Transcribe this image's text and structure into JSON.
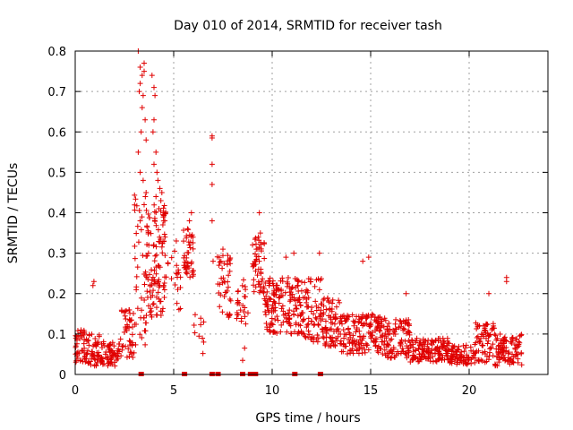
{
  "chart_data": {
    "type": "scatter",
    "title": "Day 010 of 2014, SRMTID for receiver tash",
    "xlabel": "GPS time / hours",
    "ylabel": "SRMTID / TECUs",
    "xlim": [
      0,
      24
    ],
    "ylim": [
      0,
      0.8
    ],
    "xticks": [
      0,
      5,
      10,
      15,
      20
    ],
    "yticks": [
      0,
      0.1,
      0.2,
      0.3,
      0.4,
      0.5,
      0.6,
      0.7,
      0.8
    ],
    "xtick_labels": [
      "0",
      "5",
      "10",
      "15",
      "20"
    ],
    "ytick_labels": [
      "0",
      "0.1",
      "0.2",
      "0.3",
      "0.4",
      "0.5",
      "0.6",
      "0.7",
      "0.8"
    ],
    "grid": true,
    "marker": "+",
    "color": "#e00000",
    "series": [
      {
        "name": "SRMTID",
        "segments": [
          {
            "x0": 0.0,
            "x1": 0.5,
            "base": 0.07,
            "spread": 0.04,
            "n": 40
          },
          {
            "x0": 0.5,
            "x1": 1.5,
            "base": 0.06,
            "spread": 0.04,
            "n": 70
          },
          {
            "x0": 1.5,
            "x1": 2.3,
            "base": 0.05,
            "spread": 0.03,
            "n": 50
          },
          {
            "x0": 2.3,
            "x1": 3.0,
            "base": 0.1,
            "spread": 0.06,
            "n": 45
          },
          {
            "x0": 3.0,
            "x1": 3.6,
            "base": 0.25,
            "spread": 0.2,
            "n": 40
          },
          {
            "x0": 3.6,
            "x1": 4.6,
            "base": 0.28,
            "spread": 0.14,
            "n": 110
          },
          {
            "x0": 4.6,
            "x1": 5.4,
            "base": 0.25,
            "spread": 0.1,
            "n": 20
          },
          {
            "x0": 5.5,
            "x1": 6.0,
            "base": 0.3,
            "spread": 0.06,
            "n": 40
          },
          {
            "x0": 6.0,
            "x1": 6.8,
            "base": 0.1,
            "spread": 0.05,
            "n": 10
          },
          {
            "x0": 7.2,
            "x1": 7.9,
            "base": 0.22,
            "spread": 0.08,
            "n": 40
          },
          {
            "x0": 8.2,
            "x1": 8.8,
            "base": 0.17,
            "spread": 0.07,
            "n": 25
          },
          {
            "x0": 9.0,
            "x1": 9.6,
            "base": 0.27,
            "spread": 0.07,
            "n": 50
          },
          {
            "x0": 9.6,
            "x1": 11.5,
            "base": 0.17,
            "spread": 0.07,
            "n": 160
          },
          {
            "x0": 11.5,
            "x1": 12.5,
            "base": 0.16,
            "spread": 0.08,
            "n": 70
          },
          {
            "x0": 12.5,
            "x1": 13.5,
            "base": 0.13,
            "spread": 0.06,
            "n": 80
          },
          {
            "x0": 13.5,
            "x1": 15.5,
            "base": 0.1,
            "spread": 0.05,
            "n": 150
          },
          {
            "x0": 15.5,
            "x1": 17.0,
            "base": 0.09,
            "spread": 0.05,
            "n": 110
          },
          {
            "x0": 17.0,
            "x1": 19.0,
            "base": 0.06,
            "spread": 0.03,
            "n": 140
          },
          {
            "x0": 19.0,
            "x1": 20.3,
            "base": 0.05,
            "spread": 0.025,
            "n": 80
          },
          {
            "x0": 20.3,
            "x1": 21.3,
            "base": 0.08,
            "spread": 0.05,
            "n": 70
          },
          {
            "x0": 21.3,
            "x1": 22.7,
            "base": 0.06,
            "spread": 0.04,
            "n": 100
          }
        ],
        "outliers": [
          {
            "x": 3.2,
            "y": 0.8
          },
          {
            "x": 3.3,
            "y": 0.76
          },
          {
            "x": 3.4,
            "y": 0.74
          },
          {
            "x": 3.3,
            "y": 0.72
          },
          {
            "x": 3.25,
            "y": 0.7
          },
          {
            "x": 3.45,
            "y": 0.69
          },
          {
            "x": 3.5,
            "y": 0.77
          },
          {
            "x": 3.5,
            "y": 0.75
          },
          {
            "x": 3.4,
            "y": 0.66
          },
          {
            "x": 3.55,
            "y": 0.63
          },
          {
            "x": 3.35,
            "y": 0.6
          },
          {
            "x": 3.6,
            "y": 0.58
          },
          {
            "x": 3.2,
            "y": 0.55
          },
          {
            "x": 3.3,
            "y": 0.5
          },
          {
            "x": 3.45,
            "y": 0.48
          },
          {
            "x": 3.6,
            "y": 0.45
          },
          {
            "x": 3.5,
            "y": 0.42
          },
          {
            "x": 3.3,
            "y": 0.38
          },
          {
            "x": 3.9,
            "y": 0.74
          },
          {
            "x": 4.0,
            "y": 0.71
          },
          {
            "x": 4.05,
            "y": 0.69
          },
          {
            "x": 4.0,
            "y": 0.63
          },
          {
            "x": 3.95,
            "y": 0.6
          },
          {
            "x": 4.1,
            "y": 0.55
          },
          {
            "x": 4.0,
            "y": 0.52
          },
          {
            "x": 4.15,
            "y": 0.5
          },
          {
            "x": 4.2,
            "y": 0.48
          },
          {
            "x": 4.3,
            "y": 0.46
          },
          {
            "x": 4.1,
            "y": 0.44
          },
          {
            "x": 4.4,
            "y": 0.45
          },
          {
            "x": 4.35,
            "y": 0.43
          },
          {
            "x": 4.5,
            "y": 0.4
          },
          {
            "x": 4.55,
            "y": 0.38
          },
          {
            "x": 4.25,
            "y": 0.41
          },
          {
            "x": 4.45,
            "y": 0.37
          },
          {
            "x": 4.5,
            "y": 0.33
          },
          {
            "x": 6.95,
            "y": 0.59
          },
          {
            "x": 6.95,
            "y": 0.585
          },
          {
            "x": 6.95,
            "y": 0.52
          },
          {
            "x": 6.95,
            "y": 0.47
          },
          {
            "x": 6.95,
            "y": 0.38
          },
          {
            "x": 7.0,
            "y": 0.28
          },
          {
            "x": 7.5,
            "y": 0.31
          },
          {
            "x": 7.4,
            "y": 0.28
          },
          {
            "x": 7.3,
            "y": 0.27
          },
          {
            "x": 5.9,
            "y": 0.4
          },
          {
            "x": 5.8,
            "y": 0.38
          },
          {
            "x": 5.7,
            "y": 0.36
          },
          {
            "x": 5.5,
            "y": 0.33
          },
          {
            "x": 9.35,
            "y": 0.4
          },
          {
            "x": 9.4,
            "y": 0.35
          },
          {
            "x": 9.3,
            "y": 0.34
          },
          {
            "x": 8.5,
            "y": 0.035
          },
          {
            "x": 8.6,
            "y": 0.065
          },
          {
            "x": 0.9,
            "y": 0.22
          },
          {
            "x": 0.95,
            "y": 0.23
          },
          {
            "x": 14.6,
            "y": 0.28
          },
          {
            "x": 14.9,
            "y": 0.29
          },
          {
            "x": 12.4,
            "y": 0.3
          },
          {
            "x": 11.1,
            "y": 0.3
          },
          {
            "x": 10.7,
            "y": 0.29
          },
          {
            "x": 21.9,
            "y": 0.23
          },
          {
            "x": 21.9,
            "y": 0.24
          },
          {
            "x": 16.8,
            "y": 0.2
          },
          {
            "x": 21.0,
            "y": 0.2
          }
        ],
        "zeros": [
          3.35,
          5.55,
          6.95,
          7.25,
          8.5,
          8.9,
          9.15,
          11.15,
          12.45
        ]
      }
    ]
  }
}
